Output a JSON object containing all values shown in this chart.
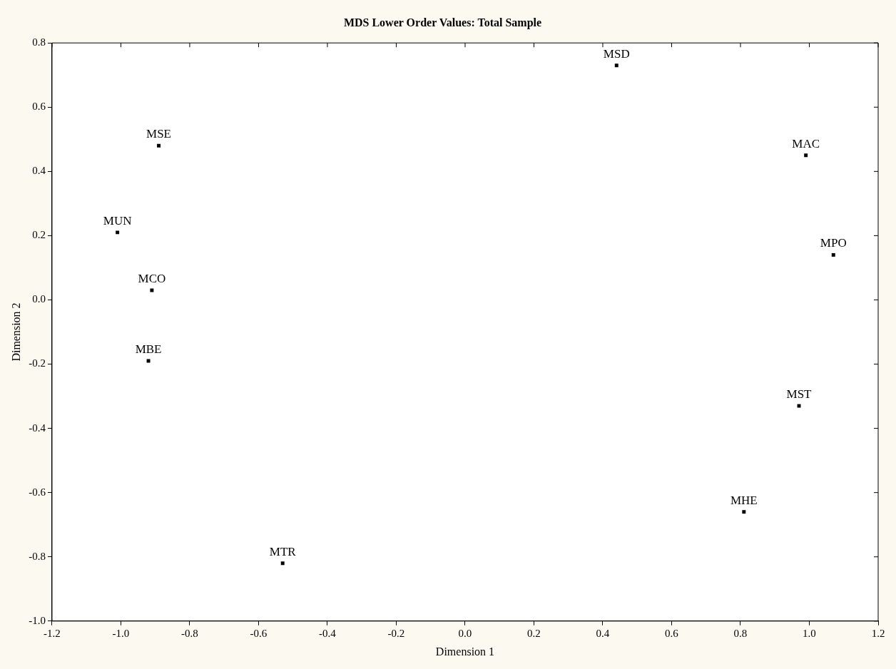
{
  "chart_data": {
    "type": "scatter",
    "title": "MDS Lower Order Values: Total Sample",
    "xlabel": "Dimension 1",
    "ylabel": "Dimension 2",
    "series": [
      {
        "color": "#000000",
        "x": [
          0.44,
          -0.89,
          -1.01,
          -0.91,
          -0.92,
          0.99,
          1.07,
          0.97,
          -0.53,
          0.81
        ],
        "values": [
          0.73,
          0.48,
          0.21,
          0.03,
          -0.19,
          0.45,
          0.14,
          -0.33,
          -0.82,
          -0.66
        ]
      }
    ],
    "annotations": [
      {
        "text": "MSD",
        "x": 0.44,
        "y": 0.73
      },
      {
        "text": "MSE",
        "x": -0.89,
        "y": 0.48
      },
      {
        "text": "MUN",
        "x": -1.01,
        "y": 0.21
      },
      {
        "text": "MCO",
        "x": -0.91,
        "y": 0.03
      },
      {
        "text": "MBE",
        "x": -0.92,
        "y": -0.19
      },
      {
        "text": "MAC",
        "x": 0.99,
        "y": 0.45
      },
      {
        "text": "MPO",
        "x": 1.07,
        "y": 0.14
      },
      {
        "text": "MST",
        "x": 0.97,
        "y": -0.33
      },
      {
        "text": "MTR",
        "x": -0.53,
        "y": -0.82
      },
      {
        "text": "MHE",
        "x": 0.81,
        "y": -0.66
      }
    ],
    "xlim": [
      -1.2,
      1.2
    ],
    "xticks": [
      -1.2,
      {
        "value": -1,
        "label": "-1.0"
      },
      -0.8,
      -0.6,
      -0.4,
      -0.2,
      {
        "value": 0,
        "label": "0.0"
      },
      0.2,
      0.4,
      0.6,
      0.8,
      {
        "value": 1,
        "label": "1.0"
      },
      1.2
    ],
    "ylim": [
      -1.0,
      0.8
    ],
    "yticks": [
      {
        "value": -1,
        "label": "-1.0"
      },
      -0.8,
      -0.6,
      -0.4,
      -0.2,
      {
        "value": 0,
        "label": "0.0"
      },
      0.2,
      0.4,
      0.6,
      0.8
    ],
    "grid": false,
    "legend": false,
    "marker": "square"
  }
}
